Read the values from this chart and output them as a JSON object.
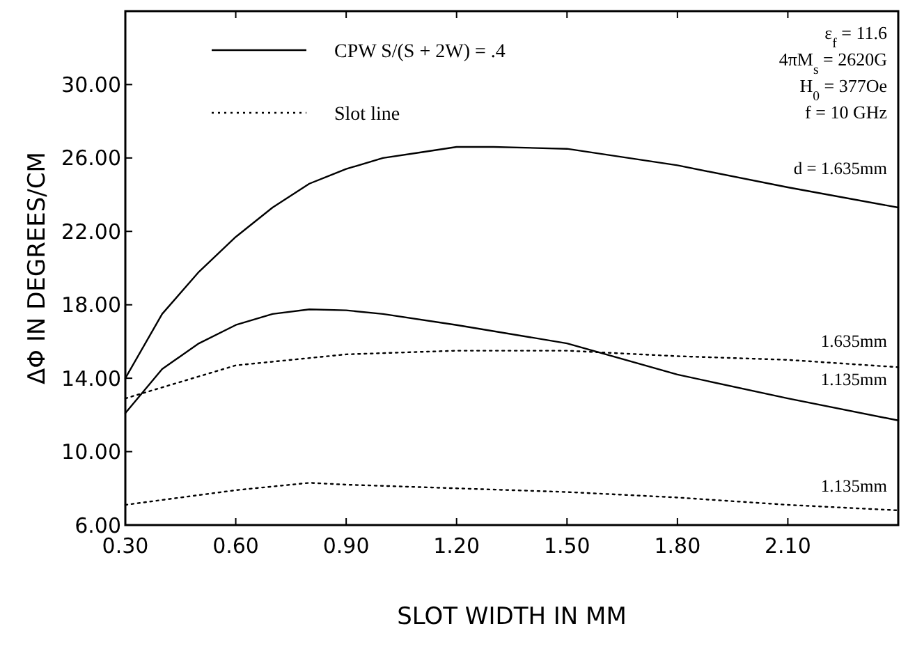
{
  "chart_data": {
    "type": "line",
    "xlabel": "SLOT WIDTH IN MM",
    "ylabel": "ΔΦ IN DEGREES/CM",
    "xlim": [
      0.3,
      2.4
    ],
    "ylim": [
      6,
      34
    ],
    "xticks": [
      {
        "value": 0.3,
        "label": "0.30"
      },
      {
        "value": 0.6,
        "label": "0.60"
      },
      {
        "value": 0.9,
        "label": "0.90"
      },
      {
        "value": 1.2,
        "label": "1.20"
      },
      {
        "value": 1.5,
        "label": "1.50"
      },
      {
        "value": 1.8,
        "label": "1.80"
      },
      {
        "value": 2.1,
        "label": "2.10"
      }
    ],
    "yticks": [
      {
        "value": 6,
        "label": "6.00"
      },
      {
        "value": 10,
        "label": "10.00"
      },
      {
        "value": 14,
        "label": "14.00"
      },
      {
        "value": 18,
        "label": "18.00"
      },
      {
        "value": 22,
        "label": "22.00"
      },
      {
        "value": 26,
        "label": "26.00"
      },
      {
        "value": 30,
        "label": "30.00"
      }
    ],
    "grid": false,
    "legend": "top left",
    "marker": "none",
    "series": [
      {
        "name": "CPW S/(S + 2W) = .4",
        "color": "#000000",
        "line_style": "solid",
        "x": [
          0.3,
          0.4,
          0.5,
          0.6,
          0.7,
          0.8,
          0.9,
          1.0,
          1.1,
          1.2,
          1.3,
          1.5,
          1.8,
          2.1,
          2.4
        ],
        "values": [
          14.0,
          17.5,
          19.8,
          21.7,
          23.3,
          24.6,
          25.4,
          26.0,
          26.3,
          26.6,
          26.6,
          26.5,
          25.6,
          24.4,
          23.3
        ]
      },
      {
        "color": "#000000",
        "line_style": "solid",
        "x": [
          0.3,
          0.4,
          0.5,
          0.6,
          0.7,
          0.8,
          0.9,
          1.0,
          1.2,
          1.5,
          1.8,
          2.1,
          2.4
        ],
        "values": [
          12.1,
          14.5,
          15.9,
          16.9,
          17.5,
          17.75,
          17.7,
          17.5,
          16.9,
          15.9,
          14.2,
          12.9,
          11.7
        ]
      },
      {
        "name": "Slot line",
        "color": "#000000",
        "line_style": "dotted",
        "x": [
          0.3,
          0.6,
          0.9,
          1.2,
          1.5,
          1.8,
          2.1,
          2.4
        ],
        "values": [
          12.9,
          14.7,
          15.3,
          15.5,
          15.5,
          15.2,
          15.0,
          14.6
        ]
      },
      {
        "color": "#000000",
        "line_style": "dotted",
        "x": [
          0.3,
          0.6,
          0.8,
          0.9,
          1.2,
          1.5,
          1.8,
          2.1,
          2.4
        ],
        "values": [
          7.1,
          7.9,
          8.3,
          8.2,
          8.0,
          7.8,
          7.5,
          7.1,
          6.8
        ]
      }
    ],
    "annotations": [
      "ε$_{f}$ = 11.6",
      "4πM$_{s}$ = 2620G",
      "H$_{0}$ = 377Oe",
      "f = 10 GHz",
      "d = 1.635mm",
      "1.635mm",
      "1.135mm",
      "1.135mm"
    ]
  }
}
